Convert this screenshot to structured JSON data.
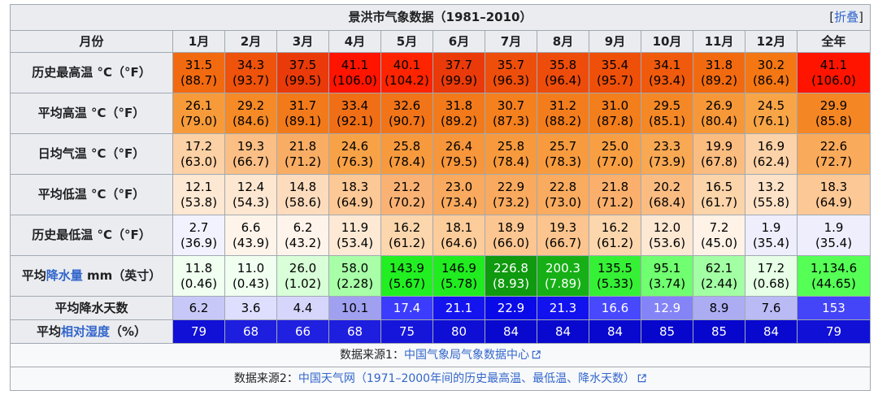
{
  "header": {
    "title": "景洪市气象数据（1981–2010）",
    "toggle_open": "[",
    "toggle_text": "折叠",
    "toggle_close": "]"
  },
  "table": {
    "corner": "月份",
    "columns": [
      "1月",
      "2月",
      "3月",
      "4月",
      "5月",
      "6月",
      "7月",
      "8月",
      "9月",
      "10月",
      "11月",
      "12月",
      "全年"
    ],
    "rows": [
      {
        "label": [
          {
            "text": "历史最高温 °C（°F）"
          }
        ],
        "values": [
          "31.5",
          "34.3",
          "37.5",
          "41.1",
          "40.1",
          "37.7",
          "35.7",
          "35.8",
          "35.4",
          "34.1",
          "31.8",
          "30.2",
          "41.1"
        ],
        "sub": [
          "(88.7)",
          "(93.7)",
          "(99.5)",
          "(106.0)",
          "(104.2)",
          "(99.9)",
          "(96.3)",
          "(96.4)",
          "(95.7)",
          "(93.4)",
          "(89.2)",
          "(86.4)",
          "(106.0)"
        ],
        "bg": [
          "#f26a10",
          "#ee520b",
          "#ea3a09",
          "#ff1400",
          "#ff2400",
          "#ea3a09",
          "#ee4e0b",
          "#ee4c0b",
          "#ef5009",
          "#f05a0c",
          "#f26a10",
          "#f47713",
          "#ff1400"
        ],
        "fg": "#000000"
      },
      {
        "label": [
          {
            "text": "平均高温 °C（°F）"
          }
        ],
        "values": [
          "26.1",
          "29.2",
          "31.7",
          "33.4",
          "32.6",
          "31.8",
          "30.7",
          "31.2",
          "31.0",
          "29.5",
          "26.9",
          "24.5",
          "29.9"
        ],
        "sub": [
          "(79.0)",
          "(84.6)",
          "(89.1)",
          "(92.1)",
          "(90.7)",
          "(89.2)",
          "(87.3)",
          "(88.2)",
          "(87.8)",
          "(85.1)",
          "(80.4)",
          "(76.1)",
          "(85.8)"
        ],
        "bg": [
          "#f79b3a",
          "#f58a26",
          "#f27a1a",
          "#f06f16",
          "#f17418",
          "#f27a1a",
          "#f4801e",
          "#f37d1c",
          "#f37e1c",
          "#f58826",
          "#f79838",
          "#f8a547",
          "#f58624"
        ],
        "fg": "#000000"
      },
      {
        "label": [
          {
            "text": "日均气温 °C（°F）"
          }
        ],
        "values": [
          "17.2",
          "19.3",
          "21.8",
          "24.6",
          "25.8",
          "26.4",
          "25.8",
          "25.7",
          "25.0",
          "23.3",
          "19.9",
          "16.9",
          "22.6"
        ],
        "sub": [
          "(63.0)",
          "(66.7)",
          "(71.2)",
          "(76.3)",
          "(78.4)",
          "(79.5)",
          "(78.4)",
          "(78.3)",
          "(77.0)",
          "(73.9)",
          "(67.8)",
          "(62.4)",
          "(72.7)"
        ],
        "bg": [
          "#fcd1a5",
          "#fbbf86",
          "#f9ad64",
          "#f8a247",
          "#f79a3d",
          "#f7963a",
          "#f79a3d",
          "#f79b3e",
          "#f89f43",
          "#f9a853",
          "#fbbc80",
          "#fcd2a8",
          "#f9aa5a"
        ],
        "fg": "#000000"
      },
      {
        "label": [
          {
            "text": "平均低温 °C（°F）"
          }
        ],
        "values": [
          "12.1",
          "12.4",
          "14.8",
          "18.3",
          "21.2",
          "23.0",
          "22.9",
          "22.8",
          "21.8",
          "20.2",
          "16.5",
          "13.2",
          "18.3"
        ],
        "sub": [
          "(53.8)",
          "(54.3)",
          "(58.6)",
          "(64.9)",
          "(70.2)",
          "(73.4)",
          "(73.2)",
          "(73.0)",
          "(71.2)",
          "(68.4)",
          "(61.7)",
          "(55.8)",
          "(64.9)"
        ],
        "bg": [
          "#fde8d3",
          "#fde7d0",
          "#fddcbe",
          "#fcc896",
          "#fab274",
          "#f9aa5e",
          "#f9aa5f",
          "#f9ab60",
          "#fab06c",
          "#fbbc82",
          "#fcd4aa",
          "#fde2c8",
          "#fcc896"
        ],
        "fg": "#000000"
      },
      {
        "label": [
          {
            "text": "历史最低温 °C（°F）"
          }
        ],
        "values": [
          "2.7",
          "6.6",
          "6.2",
          "11.9",
          "16.2",
          "18.1",
          "18.9",
          "19.3",
          "16.2",
          "12.0",
          "7.2",
          "1.9",
          "1.9"
        ],
        "sub": [
          "(36.9)",
          "(43.9)",
          "(43.2)",
          "(53.4)",
          "(61.2)",
          "(64.6)",
          "(66.0)",
          "(66.7)",
          "(61.2)",
          "(53.6)",
          "(45.0)",
          "(35.4)",
          "(35.4)"
        ],
        "bg": [
          "#f2f2ff",
          "#fff4ea",
          "#fff4eb",
          "#fde9d4",
          "#fcd6ad",
          "#fccc9a",
          "#fcc692",
          "#fcc48e",
          "#fcd6ad",
          "#fde8d3",
          "#fff2e6",
          "#eeeefd",
          "#eeeefd"
        ],
        "fg": "#000000"
      },
      {
        "label": [
          {
            "text": "平均"
          },
          {
            "text": "降水量",
            "link": true
          },
          {
            "text": " mm（英寸）"
          }
        ],
        "values": [
          "11.8",
          "11.0",
          "26.0",
          "58.0",
          "143.9",
          "146.9",
          "226.8",
          "200.3",
          "135.5",
          "95.1",
          "62.1",
          "17.2",
          "1,134.6"
        ],
        "sub": [
          "(0.46)",
          "(0.43)",
          "(1.02)",
          "(2.28)",
          "(5.67)",
          "(5.78)",
          "(8.93)",
          "(7.89)",
          "(5.33)",
          "(3.74)",
          "(2.44)",
          "(0.68)",
          "(44.65)"
        ],
        "bg": [
          "#f0fff0",
          "#f1fff1",
          "#d8ffd8",
          "#a8ffa8",
          "#22ef22",
          "#20ec20",
          "#0f9a0f",
          "#16b016",
          "#36f036",
          "#70ff70",
          "#a3ffa3",
          "#e6ffe6",
          "#55ff55"
        ],
        "fg": [
          "#000000",
          "#000000",
          "#000000",
          "#000000",
          "#000000",
          "#000000",
          "#ffffff",
          "#ffffff",
          "#000000",
          "#000000",
          "#000000",
          "#000000",
          "#000000"
        ]
      },
      {
        "label": [
          {
            "text": "平均降水天数"
          }
        ],
        "values": [
          "6.2",
          "3.6",
          "4.4",
          "10.1",
          "17.4",
          "21.1",
          "22.9",
          "21.3",
          "16.6",
          "12.9",
          "8.9",
          "7.6",
          "153"
        ],
        "bg": [
          "#c8c8f8",
          "#dedeff",
          "#d6d6fd",
          "#a0a0f0",
          "#3c3cff",
          "#1414ef",
          "#0a0ae8",
          "#1212ee",
          "#4848ff",
          "#8484f6",
          "#acacf3",
          "#babaf5",
          "#4444f8"
        ],
        "fg": [
          "#000000",
          "#000000",
          "#000000",
          "#000000",
          "#ffffff",
          "#ffffff",
          "#ffffff",
          "#ffffff",
          "#ffffff",
          "#ffffff",
          "#000000",
          "#000000",
          "#ffffff"
        ]
      },
      {
        "label": [
          {
            "text": "平均"
          },
          {
            "text": "相对湿度",
            "link": true
          },
          {
            "text": "（%）"
          }
        ],
        "values": [
          "79",
          "68",
          "66",
          "68",
          "75",
          "80",
          "84",
          "84",
          "84",
          "85",
          "85",
          "84",
          "79"
        ],
        "bg": [
          "#1010d6",
          "#1e1ede",
          "#2020e0",
          "#1e1ede",
          "#1616da",
          "#0e0ed4",
          "#0808cf",
          "#0808cf",
          "#0808cf",
          "#0606cd",
          "#0606cd",
          "#0808cf",
          "#1010d6"
        ],
        "fg": "#ffffff"
      }
    ]
  },
  "sources": [
    [
      {
        "text": "数据来源1："
      },
      {
        "text": "中国气象局气象数据中心",
        "link": true
      }
    ],
    [
      {
        "text": "数据来源2："
      },
      {
        "text": "中国天气网（1971–2000年间的历史最高温、最低温、降水天数）",
        "link": true
      }
    ]
  ]
}
